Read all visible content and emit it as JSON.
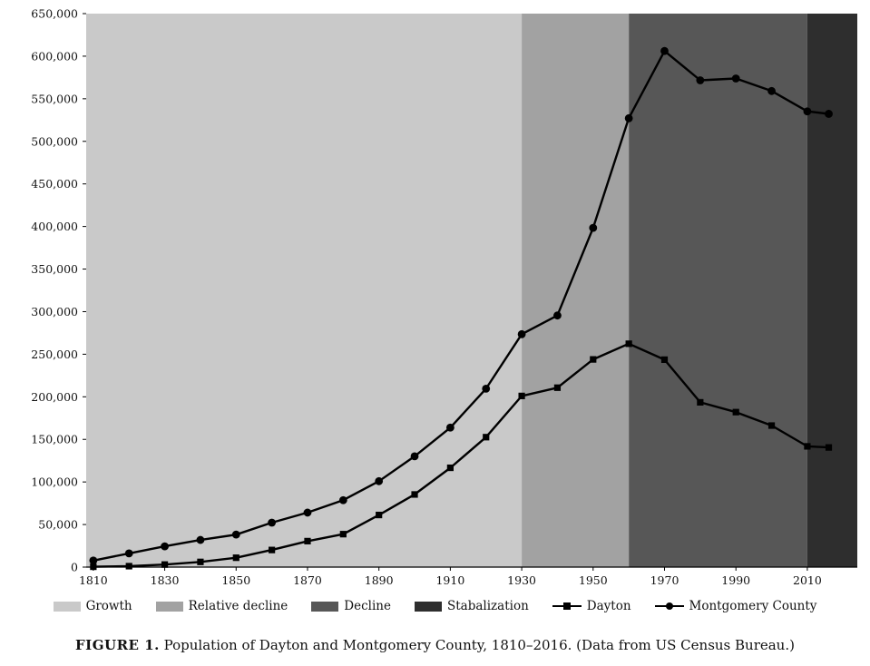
{
  "figure": {
    "caption_bold": "FIGURE 1.",
    "caption_rest": " Population of Dayton and Montgomery County, 1810–2016. (Data from US Census Bureau.)"
  },
  "legend": {
    "items": [
      {
        "label": "Growth",
        "kind": "region",
        "color": "#c9c9c9"
      },
      {
        "label": "Relative decline",
        "kind": "region",
        "color": "#a2a2a2"
      },
      {
        "label": "Decline",
        "kind": "region",
        "color": "#575757"
      },
      {
        "label": "Stabalization",
        "kind": "region",
        "color": "#2e2e2e"
      },
      {
        "label": "Dayton",
        "kind": "line",
        "marker": "square"
      },
      {
        "label": "Montgomery County",
        "kind": "line",
        "marker": "circle"
      }
    ]
  },
  "chart_data": {
    "type": "line",
    "title": "",
    "xlabel": "",
    "ylabel": "",
    "x": [
      1810,
      1820,
      1830,
      1840,
      1850,
      1860,
      1870,
      1880,
      1890,
      1900,
      1910,
      1920,
      1930,
      1940,
      1950,
      1960,
      1970,
      1980,
      1990,
      2000,
      2010,
      2016
    ],
    "series": [
      {
        "name": "Dayton",
        "marker": "square",
        "values": [
          400,
          1100,
          3000,
          6100,
          11000,
          20100,
          30500,
          38700,
          61200,
          85300,
          116600,
          152600,
          201000,
          210700,
          243900,
          262300,
          243600,
          193500,
          182000,
          166200,
          141800,
          140500
        ]
      },
      {
        "name": "Montgomery County",
        "marker": "circle",
        "values": [
          7700,
          16100,
          24400,
          31900,
          38200,
          52200,
          64000,
          78600,
          100900,
          130100,
          163800,
          209500,
          273500,
          295500,
          398400,
          527100,
          606100,
          571700,
          573800,
          559100,
          535200,
          532300
        ]
      }
    ],
    "regions": [
      {
        "label": "Growth",
        "start": 1808,
        "end": 1930,
        "color": "#c9c9c9"
      },
      {
        "label": "Relative decline",
        "start": 1930,
        "end": 1960,
        "color": "#a2a2a2"
      },
      {
        "label": "Decline",
        "start": 1960,
        "end": 2010,
        "color": "#575757"
      },
      {
        "label": "Stabalization",
        "start": 2010,
        "end": 2024,
        "color": "#2e2e2e"
      }
    ],
    "xlim": [
      1808,
      2024
    ],
    "ylim": [
      0,
      650000
    ],
    "x_ticks": [
      1810,
      1830,
      1850,
      1870,
      1890,
      1910,
      1930,
      1950,
      1970,
      1990,
      2010
    ],
    "y_ticks": [
      0,
      50000,
      100000,
      150000,
      200000,
      250000,
      300000,
      350000,
      400000,
      450000,
      500000,
      550000,
      600000,
      650000
    ],
    "y_tick_labels": [
      "0",
      "50,000",
      "100,000",
      "150,000",
      "200,000",
      "250,000",
      "300,000",
      "350,000",
      "400,000",
      "450,000",
      "500,000",
      "550,000",
      "600,000",
      "650,000"
    ],
    "line_color": "#000000",
    "grid": false,
    "legend_position": "bottom"
  }
}
